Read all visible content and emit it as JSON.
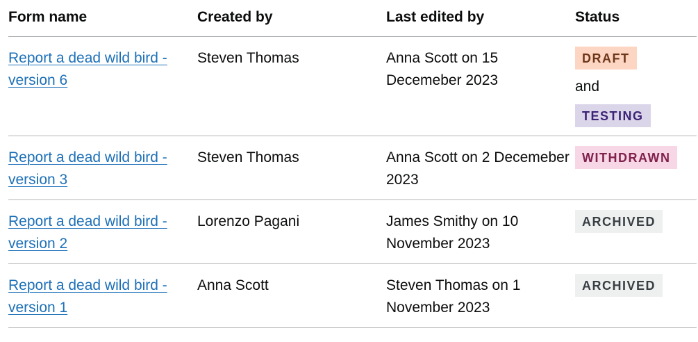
{
  "table": {
    "headers": {
      "form_name": "Form name",
      "created_by": "Created by",
      "last_edited_by": "Last edited by",
      "status": "Status"
    },
    "rows": [
      {
        "form_name": "Report a dead wild bird - version 6",
        "created_by": "Steven Thomas",
        "last_edited_by": "Anna Scott on 15 Decemeber 2023",
        "status_primary": "DRAFT",
        "status_joiner": "and",
        "status_secondary": "TESTING"
      },
      {
        "form_name": "Report a dead wild bird - version 3",
        "created_by": "Steven Thomas",
        "last_edited_by": "Anna Scott on 2 Decemeber 2023",
        "status_primary": "WITHDRAWN"
      },
      {
        "form_name": "Report a dead wild bird - version 2",
        "created_by": "Lorenzo Pagani",
        "last_edited_by": "James Smithy on 10 November 2023",
        "status_primary": "ARCHIVED"
      },
      {
        "form_name": "Report a dead wild bird - version 1",
        "created_by": "Anna Scott",
        "last_edited_by": "Steven Thomas on 1 November 2023",
        "status_primary": "ARCHIVED"
      }
    ]
  },
  "colors": {
    "link": "#1d70b8",
    "draft_bg": "#fcd6c3",
    "testing_bg": "#dbd5e9",
    "withdrawn_bg": "#f7d7e6",
    "archived_bg": "#eeefef"
  }
}
